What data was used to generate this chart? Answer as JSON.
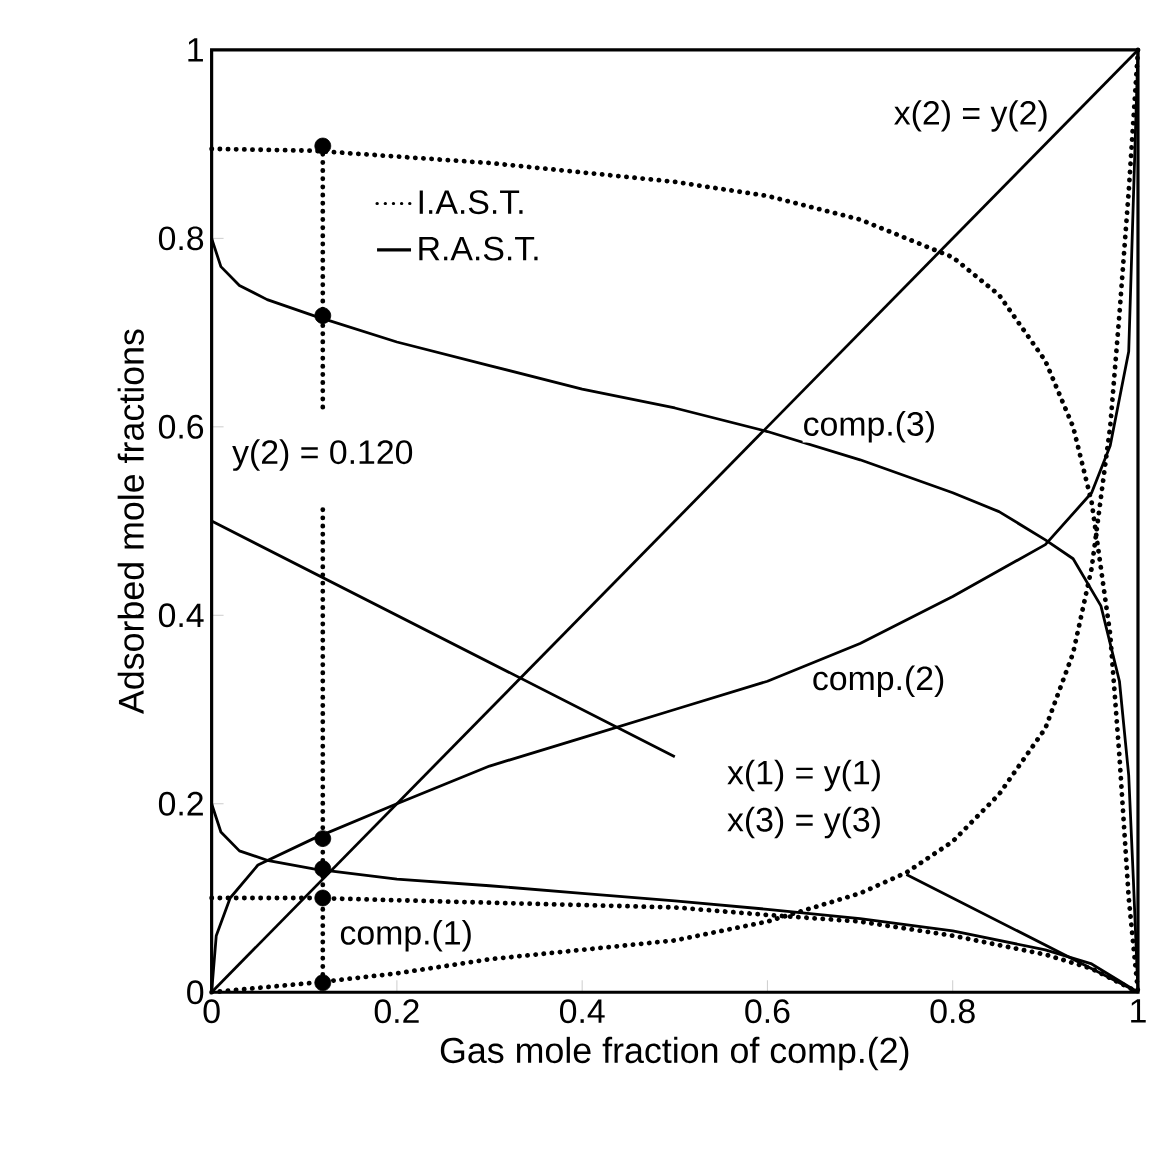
{
  "chart_data": {
    "type": "line",
    "xlabel": "Gas mole fraction of comp.(2)",
    "ylabel": "Adsorbed mole fractions",
    "xlim": [
      0,
      1
    ],
    "ylim": [
      0,
      1
    ],
    "xticks": [
      0,
      0.2,
      0.4,
      0.6,
      0.8,
      1
    ],
    "yticks": [
      0,
      0.2,
      0.4,
      0.6,
      0.8,
      1
    ],
    "grid": false,
    "legend": "top left",
    "marker": "none",
    "series": [
      {
        "name": "I.A.S.T.",
        "color": "#000000",
        "line_style": "dotted",
        "x": [
          0,
          0.11,
          0.3,
          0.5,
          0.6,
          0.7,
          0.8,
          0.85,
          0.9,
          0.93,
          0.95,
          0.97,
          0.98,
          0.99,
          1
        ],
        "values": [
          0.895,
          0.893,
          0.88,
          0.86,
          0.845,
          0.82,
          0.78,
          0.74,
          0.67,
          0.6,
          0.52,
          0.38,
          0.25,
          0.1,
          0
        ]
      },
      {
        "name": "R.A.S.T.",
        "color": "#000000",
        "line_style": "solid",
        "x": [
          0,
          0.01,
          0.03,
          0.06,
          0.11,
          0.2,
          0.3,
          0.4,
          0.5,
          0.6,
          0.7,
          0.8,
          0.85,
          0.9,
          0.93,
          0.96,
          0.98,
          0.99,
          0.995,
          1
        ],
        "values": [
          0.8,
          0.77,
          0.75,
          0.735,
          0.718,
          0.69,
          0.665,
          0.64,
          0.62,
          0.595,
          0.565,
          0.53,
          0.51,
          0.48,
          0.46,
          0.41,
          0.33,
          0.23,
          0.12,
          0
        ]
      },
      {
        "color": "#000000",
        "line_style": "solid",
        "x": [
          0,
          0.005,
          0.02,
          0.05,
          0.11,
          0.2,
          0.3,
          0.4,
          0.5,
          0.6,
          0.7,
          0.8,
          0.9,
          0.95,
          0.97,
          0.99,
          1
        ],
        "values": [
          0,
          0.06,
          0.1,
          0.135,
          0.163,
          0.2,
          0.24,
          0.27,
          0.3,
          0.33,
          0.37,
          0.42,
          0.475,
          0.53,
          0.58,
          0.68,
          1
        ]
      },
      {
        "color": "#000000",
        "line_style": "solid",
        "x": [
          0,
          0.01,
          0.03,
          0.06,
          0.11,
          0.2,
          0.3,
          0.4,
          0.5,
          0.6,
          0.7,
          0.8,
          0.9,
          0.95,
          1
        ],
        "values": [
          0.2,
          0.17,
          0.15,
          0.14,
          0.131,
          0.12,
          0.113,
          0.105,
          0.097,
          0.088,
          0.078,
          0.065,
          0.045,
          0.03,
          0
        ]
      },
      {
        "color": "#000000",
        "line_style": "dotted",
        "x": [
          0,
          0.11,
          0.2,
          0.3,
          0.4,
          0.5,
          0.6,
          0.7,
          0.75,
          0.8,
          0.85,
          0.9,
          0.93,
          0.95,
          0.97,
          0.98,
          0.99,
          1
        ],
        "values": [
          0,
          0.01,
          0.02,
          0.035,
          0.045,
          0.055,
          0.075,
          0.105,
          0.127,
          0.16,
          0.21,
          0.28,
          0.36,
          0.45,
          0.6,
          0.72,
          0.85,
          1
        ]
      },
      {
        "color": "#000000",
        "line_style": "dotted",
        "x": [
          0,
          0.11,
          0.3,
          0.5,
          0.6,
          0.7,
          0.8,
          0.9,
          0.95,
          1
        ],
        "values": [
          0.1,
          0.1,
          0.095,
          0.09,
          0.082,
          0.075,
          0.06,
          0.04,
          0.025,
          0
        ]
      },
      {
        "color": "#000000",
        "line_style": "solid",
        "x": [
          0,
          1
        ],
        "values": [
          0,
          1
        ]
      },
      {
        "color": "#000000",
        "line_style": "solid",
        "x": [
          0,
          0.5,
          0.62,
          0.75,
          1
        ],
        "values": [
          0.5,
          0.25,
          null,
          0.125,
          0
        ]
      },
      {
        "color": "#000000",
        "line_style": "dotted",
        "x": [
          0.12,
          0.12
        ],
        "values": [
          0.898,
          0.62
        ]
      },
      {
        "color": "#000000",
        "line_style": "dotted",
        "x": [
          0.12,
          0.12
        ],
        "values": [
          0.01,
          0.52
        ]
      },
      {
        "type": "scatter",
        "marker": "circle",
        "color": "#000000",
        "x": [
          0.12,
          0.12,
          0.12,
          0.12,
          0.12,
          0.12
        ],
        "values": [
          0.898,
          0.718,
          0.163,
          0.131,
          0.1,
          0.01
        ]
      }
    ],
    "annotations": [
      "x(2) = y(2)",
      "comp.(3)",
      "comp.(2)",
      "x(1) = y(1)",
      "x(3) = y(3)",
      "comp.(1)",
      "y(2) = 0.120"
    ]
  }
}
